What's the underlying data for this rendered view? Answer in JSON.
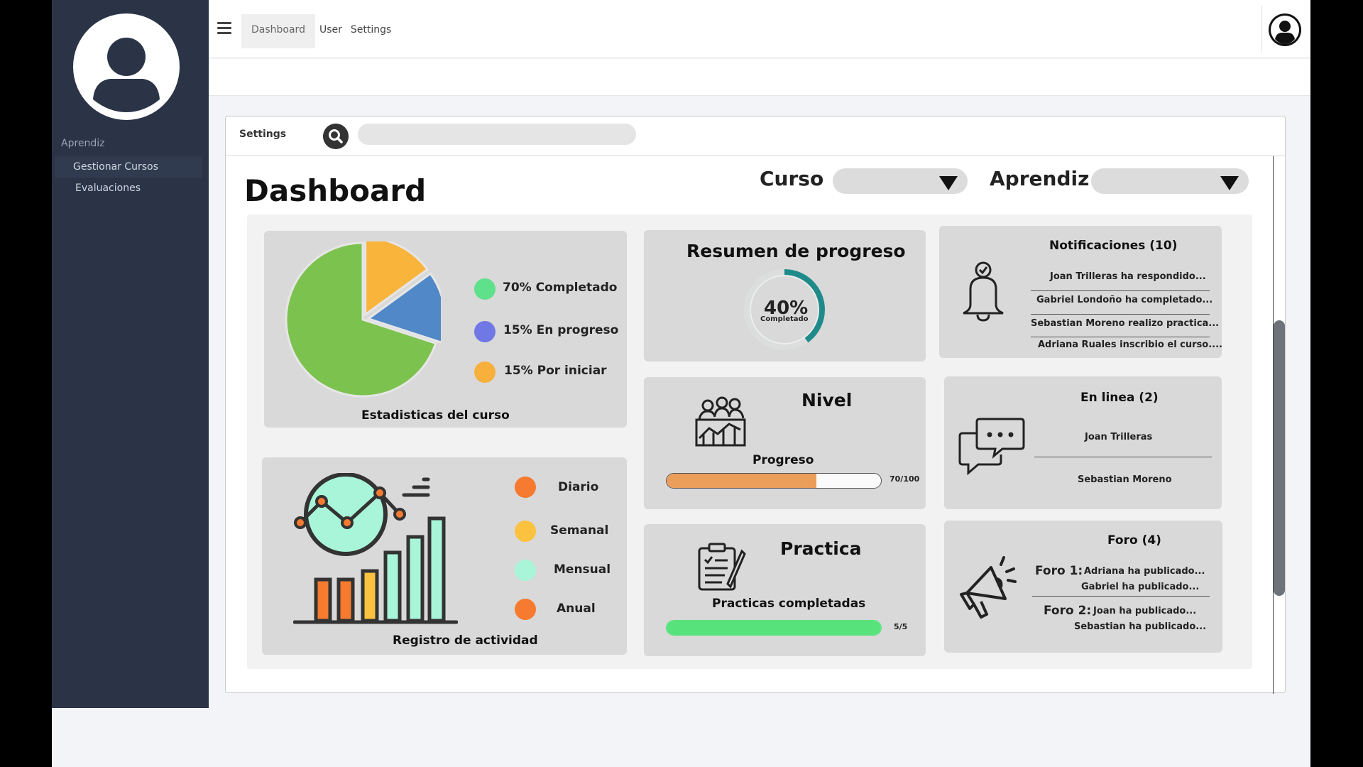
{
  "nav": {
    "tabs": [
      "Dashboard",
      "User",
      "Settings"
    ]
  },
  "sidebar": {
    "heading": "Aprendiz",
    "items": [
      "Gestionar Cursos",
      "Evaluaciones"
    ]
  },
  "panel": {
    "header_label": "Settings",
    "search_placeholder": "",
    "title": "Dashboard",
    "filters": {
      "curso_label": "Curso",
      "aprendiz_label": "Aprendiz"
    }
  },
  "stats_card": {
    "title": "Estadisticas del curso",
    "legend": [
      {
        "label": "70% Completado",
        "color": "#5fe08a"
      },
      {
        "label": "15% En progreso",
        "color": "#6f78e4"
      },
      {
        "label": "15% Por iniciar",
        "color": "#f7b03c"
      }
    ],
    "chart_data": {
      "type": "pie",
      "categories": [
        "Completado",
        "En progreso",
        "Por iniciar"
      ],
      "values": [
        70,
        15,
        15
      ],
      "colors": [
        "#7cc24e",
        "#5088c8",
        "#f9b43c"
      ]
    }
  },
  "activity_card": {
    "title": "Registro de actividad",
    "legend": [
      {
        "label": "Diario",
        "color": "#f67a2f"
      },
      {
        "label": "Semanal",
        "color": "#fbc23f"
      },
      {
        "label": "Mensual",
        "color": "#a9f5d9"
      },
      {
        "label": "Anual",
        "color": "#f67a2f"
      }
    ]
  },
  "progress_summary": {
    "title": "Resumen de progreso",
    "percent_text": "40%",
    "caption": "Completado",
    "percent": 40,
    "accent": "#1e8b8a"
  },
  "level_card": {
    "title": "Nivel",
    "subtitle": "Progreso",
    "value_text": "70/100",
    "value": 70,
    "max": 100,
    "fill_color": "#ea9e59"
  },
  "practice_card": {
    "title": "Practica",
    "subtitle": "Practicas completadas",
    "value_text": "5/5",
    "value": 5,
    "max": 5,
    "fill_color": "#58e27c"
  },
  "notifications": {
    "title": "Notificaciones (10)",
    "items": [
      "Joan Trilleras ha respondido...",
      "Gabriel Londoño ha completado...",
      "Sebastian Moreno realizo practica...",
      "Adriana Ruales inscribio el curso...."
    ]
  },
  "online": {
    "title": "En linea (2)",
    "users": [
      "Joan Trilleras",
      "Sebastian Moreno"
    ]
  },
  "forum": {
    "title": "Foro (4)",
    "threads": [
      {
        "label": "Foro 1:",
        "first": "Adriana ha publicado...",
        "second": "Gabriel ha publicado..."
      },
      {
        "label": "Foro 2:",
        "first": "Joan ha publicado...",
        "second": "Sebastian ha publicado..."
      }
    ]
  }
}
